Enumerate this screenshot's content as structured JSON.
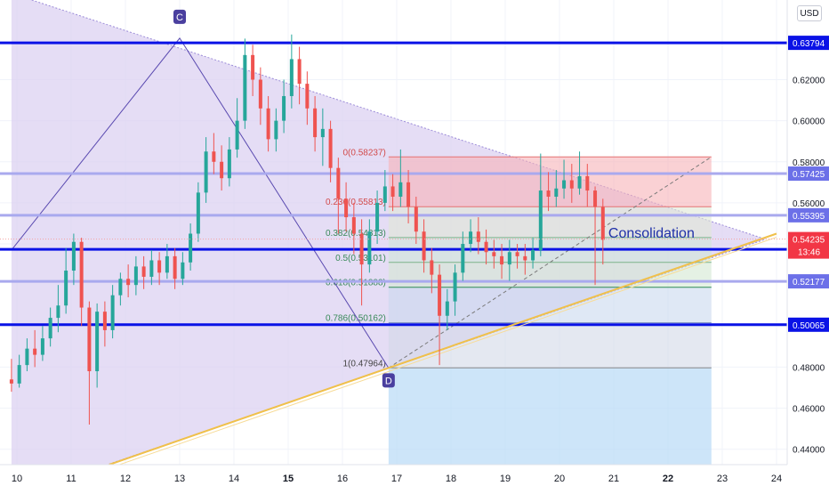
{
  "toolbar": {
    "currency": "USD"
  },
  "colors": {
    "resistance": "#0a12e6",
    "minor_level": "#a9a9ee",
    "triangle_fill": "#dcd2f2",
    "trendline": "#f0c04a",
    "candle_up": "#26a69a",
    "candle_down": "#ef5350",
    "price_badge": "#f23645",
    "annotation": "#1f30a8"
  },
  "chart_data": {
    "type": "candlestick",
    "x": [
      "10",
      "11",
      "12",
      "13",
      "14",
      "15",
      "16",
      "17",
      "18",
      "19",
      "20",
      "21",
      "22",
      "23",
      "24"
    ],
    "y_ticks": [
      0.62,
      0.6,
      0.58,
      0.56,
      0.54,
      0.5,
      0.48,
      0.46,
      0.44
    ],
    "y_tick_labels": [
      "0.62000",
      "0.60000",
      "0.58000",
      "0.56000",
      "0.54000",
      "0.50000",
      "0.48000",
      "0.46000",
      "0.44000"
    ],
    "ylim": [
      0.4325,
      0.6588
    ],
    "horizontal_levels": [
      {
        "value": 0.63794,
        "label": "0.63794",
        "style": "major"
      },
      {
        "value": 0.57425,
        "label": "0.57425",
        "style": "minor"
      },
      {
        "value": 0.55395,
        "label": "0.55395",
        "style": "minor"
      },
      {
        "value": 0.53734,
        "label": "0.53734",
        "style": "major"
      },
      {
        "value": 0.52177,
        "label": "0.52177",
        "style": "minor"
      },
      {
        "value": 0.50065,
        "label": "0.50065",
        "style": "major"
      }
    ],
    "current_price": {
      "value": 0.54235,
      "label": "0.54235",
      "countdown": "13:46"
    },
    "fibonacci": [
      {
        "ratio": 0,
        "value": 0.58237,
        "label": "0(0.58237)"
      },
      {
        "ratio": 0.236,
        "value": 0.55813,
        "label": "0.236(0.55813)"
      },
      {
        "ratio": 0.382,
        "value": 0.54313,
        "label": "0.382(0.54313)"
      },
      {
        "ratio": 0.5,
        "value": 0.53101,
        "label": "0.5(0.53101)"
      },
      {
        "ratio": 0.618,
        "value": 0.51888,
        "label": "0.618(0.51888)"
      },
      {
        "ratio": 0.786,
        "value": 0.50162,
        "label": "0.786(0.50162)"
      },
      {
        "ratio": 1,
        "value": 0.47964,
        "label": "1(0.47964)"
      }
    ],
    "pivots": [
      {
        "label": "C",
        "x": 13.0,
        "y": 0.6402
      },
      {
        "label": "D",
        "x": 16.85,
        "y": 0.4796
      }
    ],
    "triangle": {
      "upper": [
        [
          9.9,
          0.662
        ],
        [
          23.8,
          0.5423
        ]
      ],
      "lower": [
        [
          9.9,
          0.4165
        ],
        [
          23.8,
          0.5423
        ]
      ]
    },
    "trendline": [
      [
        11.7,
        0.4325
      ],
      [
        24.0,
        0.545
      ]
    ],
    "annotation": "Consolidation",
    "series": [
      {
        "values": [
          [
            0.474,
            0.472,
            0.484,
            0.468
          ],
          [
            0.472,
            0.481,
            0.486,
            0.47
          ],
          [
            0.481,
            0.489,
            0.494,
            0.478
          ],
          [
            0.489,
            0.486,
            0.498,
            0.48
          ],
          [
            0.486,
            0.494,
            0.5,
            0.483
          ],
          [
            0.494,
            0.504,
            0.509,
            0.49
          ],
          [
            0.504,
            0.51,
            0.52,
            0.497
          ],
          [
            0.51,
            0.527,
            0.538,
            0.506
          ],
          [
            0.527,
            0.541,
            0.545,
            0.52
          ],
          [
            0.541,
            0.509,
            0.543,
            0.5
          ],
          [
            0.509,
            0.478,
            0.512,
            0.452
          ],
          [
            0.478,
            0.507,
            0.511,
            0.47
          ],
          [
            0.507,
            0.498,
            0.512,
            0.49
          ],
          [
            0.498,
            0.515,
            0.52,
            0.494
          ],
          [
            0.515,
            0.523,
            0.526,
            0.51
          ],
          [
            0.523,
            0.52,
            0.53,
            0.514
          ],
          [
            0.52,
            0.529,
            0.534,
            0.515
          ],
          [
            0.529,
            0.524,
            0.534,
            0.518
          ],
          [
            0.524,
            0.532,
            0.537,
            0.52
          ],
          [
            0.532,
            0.526,
            0.536,
            0.52
          ],
          [
            0.526,
            0.534,
            0.54,
            0.523
          ],
          [
            0.534,
            0.523,
            0.538,
            0.518
          ],
          [
            0.523,
            0.531,
            0.536,
            0.52
          ],
          [
            0.531,
            0.545,
            0.55,
            0.527
          ],
          [
            0.545,
            0.565,
            0.57,
            0.541
          ],
          [
            0.565,
            0.585,
            0.592,
            0.56
          ],
          [
            0.585,
            0.58,
            0.594,
            0.574
          ],
          [
            0.58,
            0.572,
            0.588,
            0.566
          ],
          [
            0.572,
            0.586,
            0.592,
            0.568
          ],
          [
            0.586,
            0.6,
            0.611,
            0.582
          ],
          [
            0.6,
            0.632,
            0.64,
            0.596
          ],
          [
            0.632,
            0.62,
            0.637,
            0.612
          ],
          [
            0.62,
            0.606,
            0.626,
            0.598
          ],
          [
            0.606,
            0.591,
            0.612,
            0.585
          ],
          [
            0.591,
            0.6,
            0.606,
            0.585
          ],
          [
            0.6,
            0.612,
            0.62,
            0.594
          ],
          [
            0.612,
            0.63,
            0.642,
            0.606
          ],
          [
            0.63,
            0.618,
            0.636,
            0.608
          ],
          [
            0.618,
            0.606,
            0.624,
            0.598
          ],
          [
            0.606,
            0.592,
            0.612,
            0.585
          ],
          [
            0.592,
            0.596,
            0.606,
            0.578
          ],
          [
            0.596,
            0.577,
            0.6,
            0.57
          ],
          [
            0.577,
            0.562,
            0.582,
            0.545
          ],
          [
            0.562,
            0.553,
            0.57,
            0.546
          ],
          [
            0.553,
            0.545,
            0.56,
            0.535
          ],
          [
            0.545,
            0.53,
            0.552,
            0.51
          ],
          [
            0.53,
            0.546,
            0.552,
            0.526
          ],
          [
            0.546,
            0.56,
            0.566,
            0.54
          ],
          [
            0.56,
            0.568,
            0.576,
            0.556
          ],
          [
            0.568,
            0.563,
            0.574,
            0.556
          ],
          [
            0.563,
            0.57,
            0.586,
            0.558
          ],
          [
            0.57,
            0.558,
            0.576,
            0.55
          ],
          [
            0.558,
            0.546,
            0.563,
            0.54
          ],
          [
            0.546,
            0.532,
            0.552,
            0.526
          ],
          [
            0.532,
            0.525,
            0.538,
            0.516
          ],
          [
            0.525,
            0.505,
            0.53,
            0.481
          ],
          [
            0.505,
            0.512,
            0.518,
            0.498
          ],
          [
            0.512,
            0.526,
            0.53,
            0.505
          ],
          [
            0.526,
            0.54,
            0.546,
            0.522
          ],
          [
            0.54,
            0.546,
            0.552,
            0.536
          ],
          [
            0.546,
            0.541,
            0.553,
            0.535
          ],
          [
            0.541,
            0.536,
            0.547,
            0.53
          ],
          [
            0.536,
            0.534,
            0.542,
            0.528
          ],
          [
            0.534,
            0.53,
            0.54,
            0.523
          ],
          [
            0.53,
            0.536,
            0.542,
            0.522
          ],
          [
            0.536,
            0.534,
            0.54,
            0.528
          ],
          [
            0.534,
            0.532,
            0.54,
            0.525
          ],
          [
            0.532,
            0.537,
            0.543,
            0.528
          ],
          [
            0.537,
            0.566,
            0.584,
            0.534
          ],
          [
            0.566,
            0.563,
            0.575,
            0.556
          ],
          [
            0.563,
            0.567,
            0.576,
            0.558
          ],
          [
            0.567,
            0.571,
            0.581,
            0.562
          ],
          [
            0.571,
            0.567,
            0.579,
            0.56
          ],
          [
            0.567,
            0.573,
            0.585,
            0.564
          ],
          [
            0.573,
            0.566,
            0.579,
            0.558
          ],
          [
            0.566,
            0.558,
            0.568,
            0.52
          ],
          [
            0.558,
            0.542,
            0.562,
            0.53
          ]
        ]
      }
    ]
  }
}
